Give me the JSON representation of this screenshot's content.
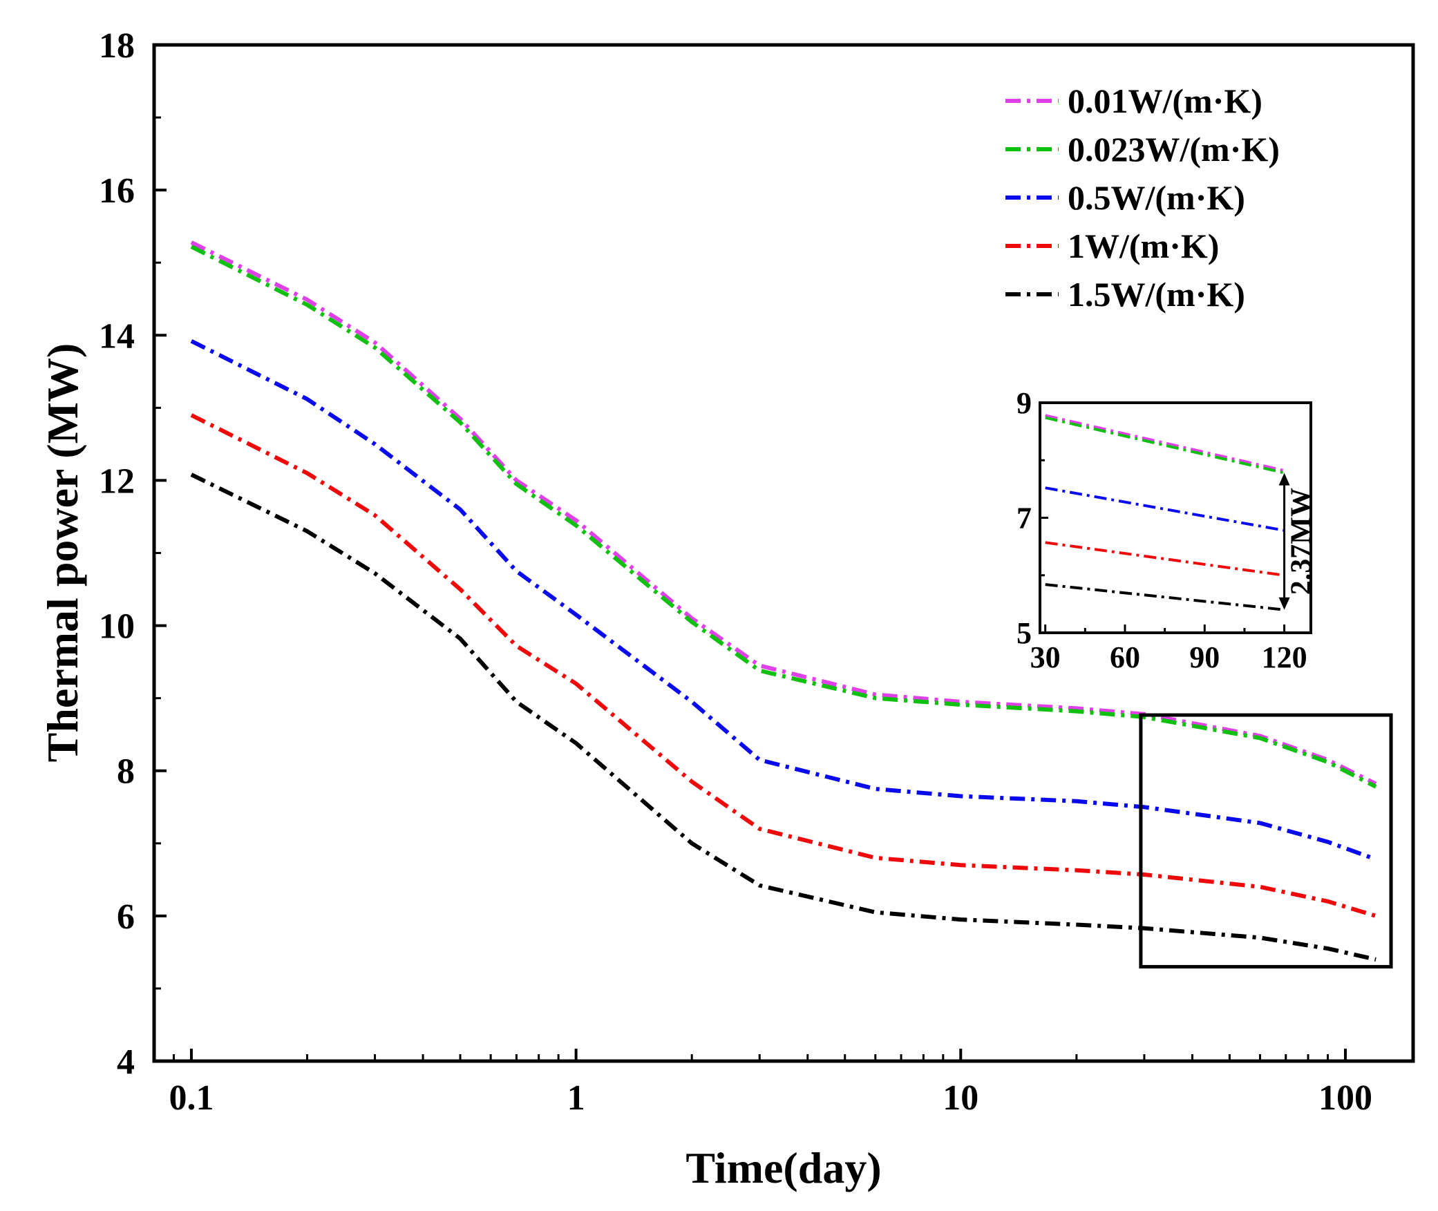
{
  "chart_data": {
    "type": "line",
    "title": "",
    "xlabel": "Time(day)",
    "ylabel": "Thermal power (MW)",
    "xscale": "log",
    "xlim": [
      0.08,
      150
    ],
    "ylim": [
      4,
      18
    ],
    "xticks": [
      0.1,
      1,
      10,
      100
    ],
    "xtick_labels": [
      "0.1",
      "1",
      "10",
      "100"
    ],
    "yticks": [
      4,
      6,
      8,
      10,
      12,
      14,
      16,
      18
    ],
    "ytick_labels": [
      "4",
      "6",
      "8",
      "10",
      "12",
      "14",
      "16",
      "18"
    ],
    "legend_position": "top-right",
    "x": [
      0.1,
      0.2,
      0.3,
      0.5,
      0.7,
      1,
      2,
      3,
      6,
      10,
      20,
      30,
      60,
      90,
      120
    ],
    "series": [
      {
        "name": "0.01W/(m·K)",
        "color": "#e040e8",
        "values": [
          15.28,
          14.49,
          13.9,
          12.85,
          12.0,
          11.45,
          10.1,
          9.45,
          9.05,
          8.95,
          8.86,
          8.78,
          8.48,
          8.15,
          7.82
        ]
      },
      {
        "name": "0.023W/(m·K)",
        "color": "#10c010",
        "values": [
          15.22,
          14.42,
          13.83,
          12.8,
          11.95,
          11.38,
          10.05,
          9.38,
          9.0,
          8.91,
          8.82,
          8.74,
          8.45,
          8.12,
          7.78
        ]
      },
      {
        "name": "0.5W/(m·K)",
        "color": "#0a0aee",
        "values": [
          13.92,
          13.12,
          12.5,
          11.6,
          10.75,
          10.15,
          8.95,
          8.15,
          7.75,
          7.65,
          7.58,
          7.5,
          7.28,
          7.02,
          6.78
        ]
      },
      {
        "name": "1W/(m·K)",
        "color": "#ee0a0a",
        "values": [
          12.9,
          12.1,
          11.52,
          10.5,
          9.72,
          9.2,
          7.85,
          7.2,
          6.8,
          6.7,
          6.63,
          6.57,
          6.4,
          6.2,
          6.0
        ]
      },
      {
        "name": "1.5W/(m·K)",
        "color": "#000000",
        "values": [
          12.08,
          11.3,
          10.72,
          9.82,
          8.95,
          8.38,
          7.0,
          6.42,
          6.05,
          5.95,
          5.88,
          5.83,
          5.7,
          5.55,
          5.4
        ]
      }
    ],
    "inset": {
      "type": "line",
      "xlim": [
        28,
        130
      ],
      "ylim": [
        5,
        9
      ],
      "xticks": [
        30,
        60,
        90,
        120
      ],
      "xtick_labels": [
        "30",
        "60",
        "90",
        "120"
      ],
      "yticks": [
        5,
        7,
        9
      ],
      "ytick_labels": [
        "5",
        "7",
        "9"
      ],
      "x": [
        30,
        120
      ],
      "series": [
        {
          "name": "0.01W/(m·K)",
          "color": "#e040e8",
          "values": [
            8.78,
            7.82
          ]
        },
        {
          "name": "0.023W/(m·K)",
          "color": "#10c010",
          "values": [
            8.74,
            7.78
          ]
        },
        {
          "name": "0.5W/(m·K)",
          "color": "#0a0aee",
          "values": [
            7.52,
            6.78
          ]
        },
        {
          "name": "1W/(m·K)",
          "color": "#ee0a0a",
          "values": [
            6.57,
            6.0
          ]
        },
        {
          "name": "1.5W/(m·K)",
          "color": "#000000",
          "values": [
            5.84,
            5.4
          ]
        }
      ],
      "annotation": {
        "text": "2.37MW",
        "from": 7.78,
        "to": 5.4,
        "x": 120
      }
    },
    "zoom_box": {
      "x": [
        30,
        120
      ],
      "y": [
        5.3,
        8.72
      ]
    }
  }
}
